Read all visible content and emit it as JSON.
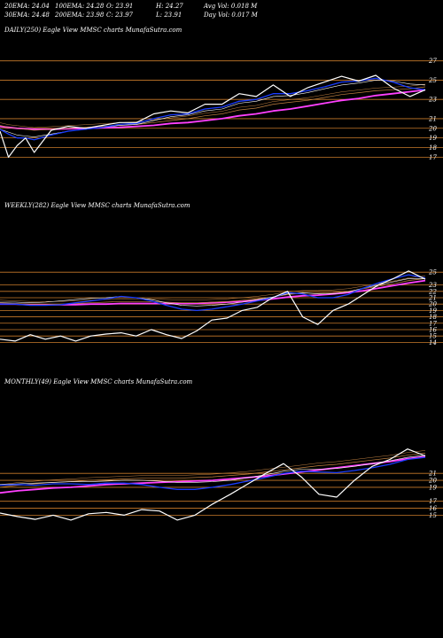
{
  "header": {
    "ema20": "20EMA: 24.04",
    "ema100": "100EMA: 24.28",
    "open": "O: 23.91",
    "high": "H: 24.27",
    "avg_vol": "Avg Vol: 0.018  M",
    "ema30": "30EMA: 24.48",
    "ema200": "200EMA: 23.98",
    "close": "C: 23.97",
    "low": "L: 23.91",
    "day_vol": "Day Vol: 0.017 M"
  },
  "colors": {
    "background": "#000000",
    "price": "#ffffff",
    "ema_short": "#1a3cff",
    "ema_long": "#ff40ff",
    "ema_mid": "#c08040",
    "grid": "#c87a2a"
  },
  "chart_data": [
    {
      "type": "line",
      "label": "DAILY(250) Eagle   View  MMSC charts MunafaSutra.com",
      "yticks": [
        27,
        25,
        23,
        21,
        20,
        19,
        18,
        17
      ],
      "ylim": [
        16.3,
        27.8
      ],
      "x": [
        0,
        5,
        10,
        15,
        20,
        30,
        40,
        50,
        60,
        70,
        80,
        90,
        100,
        110,
        120,
        130,
        140,
        150,
        160,
        170,
        180,
        190,
        200,
        210,
        220,
        230,
        240,
        249
      ],
      "series": [
        {
          "role": "price",
          "values": [
            19.7,
            17.0,
            18.2,
            19.0,
            17.5,
            19.8,
            20.2,
            20.0,
            20.3,
            20.6,
            20.6,
            21.5,
            21.8,
            21.6,
            22.5,
            22.5,
            23.6,
            23.3,
            24.5,
            23.3,
            24.2,
            24.8,
            25.4,
            24.9,
            25.5,
            24.2,
            23.3,
            24.0
          ]
        },
        {
          "role": "ema20",
          "values": [
            19.9,
            19.4,
            19.0,
            19.0,
            18.8,
            19.3,
            19.7,
            19.9,
            20.1,
            20.4,
            20.5,
            21.0,
            21.4,
            21.5,
            22.0,
            22.2,
            22.8,
            23.0,
            23.6,
            23.6,
            23.9,
            24.3,
            24.8,
            24.9,
            25.2,
            24.8,
            24.2,
            24.0
          ]
        },
        {
          "role": "ema30",
          "values": [
            19.9,
            19.6,
            19.3,
            19.2,
            19.1,
            19.4,
            19.7,
            19.9,
            20.1,
            20.3,
            20.4,
            20.8,
            21.2,
            21.4,
            21.8,
            22.0,
            22.6,
            22.8,
            23.3,
            23.4,
            23.7,
            24.1,
            24.5,
            24.7,
            25.0,
            24.9,
            24.6,
            24.5
          ]
        },
        {
          "role": "ema100",
          "values": [
            20.3,
            20.1,
            20.0,
            19.9,
            19.8,
            19.9,
            20.0,
            20.1,
            20.2,
            20.3,
            20.4,
            20.6,
            20.8,
            21.0,
            21.3,
            21.5,
            21.9,
            22.1,
            22.5,
            22.7,
            22.9,
            23.2,
            23.5,
            23.7,
            23.9,
            24.0,
            24.1,
            24.3
          ]
        },
        {
          "role": "ema200",
          "values": [
            20.2,
            20.1,
            20.0,
            19.95,
            19.9,
            19.9,
            19.95,
            20.0,
            20.05,
            20.1,
            20.2,
            20.3,
            20.5,
            20.6,
            20.8,
            21.0,
            21.3,
            21.5,
            21.8,
            22.0,
            22.3,
            22.6,
            22.9,
            23.1,
            23.4,
            23.6,
            23.8,
            23.98
          ]
        }
      ]
    },
    {
      "type": "line",
      "label": "WEEKLY(282) Eagle   View  MMSC charts MunafaSutra.com",
      "yticks": [
        25,
        23,
        22,
        21,
        20,
        19,
        18,
        17,
        16,
        15,
        14
      ],
      "ylim": [
        12.8,
        26.0
      ],
      "x": [
        0,
        10,
        20,
        30,
        40,
        50,
        60,
        70,
        80,
        90,
        100,
        110,
        120,
        130,
        140,
        150,
        160,
        170,
        180,
        190,
        200,
        210,
        220,
        230,
        240,
        250,
        260,
        270,
        281
      ],
      "series": [
        {
          "role": "price",
          "values": [
            14.5,
            14.2,
            15.2,
            14.5,
            15.0,
            14.2,
            15.0,
            15.3,
            15.5,
            15.0,
            16.0,
            15.2,
            14.6,
            15.8,
            17.5,
            17.8,
            19.0,
            19.5,
            21.0,
            22.0,
            18.0,
            16.8,
            19.0,
            20.0,
            21.5,
            23.0,
            24.0,
            25.2,
            23.9
          ]
        },
        {
          "role": "ema20",
          "values": [
            20.0,
            20.0,
            19.8,
            19.8,
            19.9,
            20.2,
            20.5,
            20.8,
            21.2,
            21.0,
            20.5,
            19.8,
            19.2,
            19.0,
            19.2,
            19.6,
            20.0,
            20.5,
            21.0,
            21.8,
            21.6,
            21.0,
            21.0,
            21.5,
            22.5,
            23.3,
            24.0,
            24.6,
            24.1
          ]
        },
        {
          "role": "ema30",
          "values": [
            20.3,
            20.3,
            20.2,
            20.3,
            20.5,
            20.7,
            20.9,
            21.0,
            21.2,
            21.0,
            20.7,
            20.2,
            19.8,
            19.7,
            19.8,
            20.0,
            20.3,
            20.7,
            21.1,
            21.6,
            21.8,
            21.6,
            21.6,
            21.9,
            22.5,
            23.0,
            23.5,
            24.0,
            24.0
          ]
        },
        {
          "role": "ema100",
          "values": [
            20.2,
            20.1,
            20.0,
            20.0,
            20.0,
            20.1,
            20.2,
            20.3,
            20.4,
            20.4,
            20.4,
            20.3,
            20.2,
            20.2,
            20.3,
            20.4,
            20.6,
            20.8,
            21.1,
            21.5,
            21.7,
            21.7,
            21.8,
            22.0,
            22.4,
            22.8,
            23.2,
            23.7,
            24.0
          ]
        },
        {
          "role": "ema200",
          "values": [
            20.0,
            20.0,
            19.9,
            19.9,
            19.9,
            19.9,
            20.0,
            20.0,
            20.1,
            20.1,
            20.1,
            20.1,
            20.1,
            20.1,
            20.2,
            20.3,
            20.4,
            20.6,
            20.8,
            21.1,
            21.3,
            21.4,
            21.6,
            21.8,
            22.1,
            22.5,
            22.9,
            23.3,
            23.7
          ]
        }
      ]
    },
    {
      "type": "line",
      "label": "MONTHLY(49) Eagle   View  MMSC charts MunafaSutra.com",
      "yticks": [
        21,
        20,
        19,
        17,
        16,
        15
      ],
      "ylim": [
        13.4,
        25.6
      ],
      "x": [
        0,
        2,
        4,
        6,
        8,
        10,
        12,
        14,
        16,
        18,
        20,
        22,
        24,
        26,
        28,
        30,
        32,
        34,
        36,
        38,
        40,
        42,
        44,
        46,
        48
      ],
      "series": [
        {
          "role": "price",
          "values": [
            15.3,
            14.8,
            14.4,
            15.0,
            14.3,
            15.2,
            15.4,
            15.0,
            15.8,
            15.6,
            14.3,
            15.0,
            16.6,
            18.0,
            19.5,
            21.0,
            22.4,
            20.5,
            18.0,
            17.6,
            20.0,
            22.0,
            23.0,
            24.5,
            23.5
          ]
        },
        {
          "role": "ema20",
          "values": [
            19.3,
            19.4,
            19.3,
            19.5,
            19.5,
            19.4,
            19.6,
            19.6,
            19.4,
            19.0,
            18.7,
            18.7,
            19.0,
            19.4,
            19.9,
            20.4,
            21.0,
            21.3,
            21.2,
            21.1,
            21.4,
            21.8,
            22.3,
            23.0,
            23.3
          ]
        },
        {
          "role": "ema30",
          "values": [
            19.4,
            19.5,
            19.6,
            19.7,
            19.8,
            19.8,
            19.9,
            20.0,
            20.0,
            19.9,
            19.7,
            19.7,
            19.8,
            20.0,
            20.4,
            20.8,
            21.3,
            21.6,
            21.6,
            21.7,
            22.0,
            22.4,
            22.8,
            23.3,
            23.6
          ]
        },
        {
          "role": "ema100",
          "values": [
            19.0,
            19.3,
            19.5,
            19.7,
            19.8,
            20.0,
            20.1,
            20.2,
            20.3,
            20.3,
            20.3,
            20.4,
            20.5,
            20.7,
            20.9,
            21.2,
            21.5,
            21.8,
            22.1,
            22.3,
            22.6,
            22.9,
            23.2,
            23.6,
            23.9
          ]
        },
        {
          "role": "ema200",
          "values": [
            18.2,
            18.5,
            18.7,
            18.9,
            19.0,
            19.2,
            19.4,
            19.5,
            19.6,
            19.7,
            19.8,
            19.9,
            20.0,
            20.2,
            20.4,
            20.6,
            20.9,
            21.2,
            21.5,
            21.8,
            22.1,
            22.4,
            22.7,
            23.1,
            23.4
          ]
        }
      ]
    }
  ]
}
